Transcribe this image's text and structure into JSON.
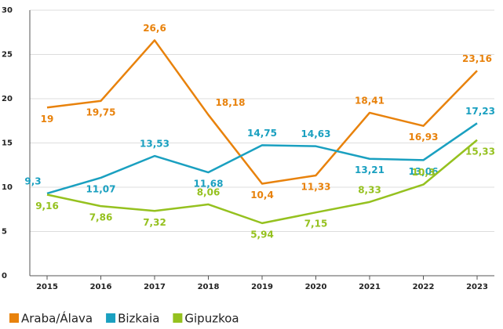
{
  "chart_data": {
    "type": "line",
    "categories": [
      "2015",
      "2016",
      "2017",
      "2018",
      "2019",
      "2020",
      "2021",
      "2022",
      "2023"
    ],
    "series": [
      {
        "name": "Araba/Álava",
        "color": "#e8820c",
        "values": [
          19,
          19.75,
          26.6,
          18.18,
          10.4,
          11.33,
          18.41,
          16.93,
          23.16
        ],
        "value_labels": [
          "19",
          "19,75",
          "26,6",
          "18,18",
          "10,4",
          "11,33",
          "18,41",
          "16,93",
          "23,16"
        ]
      },
      {
        "name": "Bizkaia",
        "color": "#1aa0c0",
        "values": [
          9.3,
          11.07,
          13.53,
          11.68,
          14.75,
          14.63,
          13.21,
          13.06,
          17.23
        ],
        "value_labels": [
          "9,3",
          "11,07",
          "13,53",
          "11,68",
          "14,75",
          "14,63",
          "13,21",
          "13,06",
          "17,23"
        ]
      },
      {
        "name": "Gipuzkoa",
        "color": "#95c11f",
        "values": [
          9.16,
          7.86,
          7.32,
          8.06,
          5.94,
          7.15,
          8.33,
          10.3,
          15.33
        ],
        "value_labels": [
          "9,16",
          "7,86",
          "7,32",
          "8,06",
          "5,94",
          "7,15",
          "8,33",
          "10,3",
          "15,33"
        ]
      }
    ],
    "ylim": [
      0,
      30
    ],
    "yticks": [
      0,
      5,
      10,
      15,
      20,
      25,
      30
    ],
    "grid": true,
    "legend": "bottom-left"
  }
}
